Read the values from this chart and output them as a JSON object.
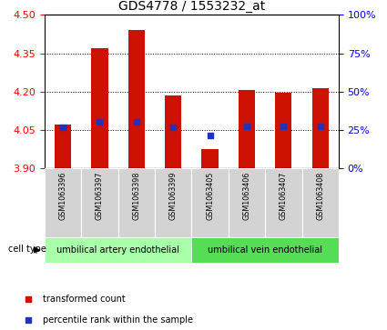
{
  "title": "GDS4778 / 1553232_at",
  "samples": [
    "GSM1063396",
    "GSM1063397",
    "GSM1063398",
    "GSM1063399",
    "GSM1063405",
    "GSM1063406",
    "GSM1063407",
    "GSM1063408"
  ],
  "bar_bottom": 3.9,
  "bar_tops": [
    4.07,
    4.37,
    4.44,
    4.185,
    3.975,
    4.205,
    4.195,
    4.215
  ],
  "percentile_values": [
    4.06,
    4.08,
    4.08,
    4.06,
    4.03,
    4.065,
    4.065,
    4.065
  ],
  "ylim": [
    3.9,
    4.5
  ],
  "yticks_left": [
    3.9,
    4.05,
    4.2,
    4.35,
    4.5
  ],
  "yticks_right_pct": [
    0,
    25,
    50,
    75,
    100
  ],
  "cell_groups": [
    {
      "label": "umbilical artery endothelial",
      "start": 0,
      "end": 4,
      "color": "#aaffaa"
    },
    {
      "label": "umbilical vein endothelial",
      "start": 4,
      "end": 8,
      "color": "#55dd55"
    }
  ],
  "legend_items": [
    {
      "label": "transformed count",
      "color": "#cc1100"
    },
    {
      "label": "percentile rank within the sample",
      "color": "#2233bb"
    }
  ],
  "bar_color": "#cc1100",
  "percentile_color": "#2233bb"
}
